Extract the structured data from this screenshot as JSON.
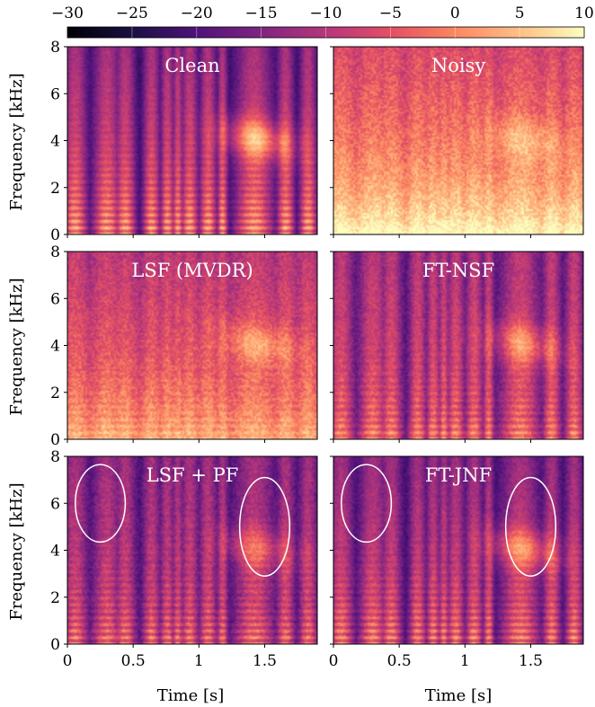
{
  "colorbar": {
    "colormap": "magma",
    "ticks": [
      "−30",
      "−25",
      "−20",
      "−15",
      "−10",
      "−5",
      "0",
      "5",
      "10"
    ],
    "range": [
      -30,
      10
    ]
  },
  "chart_data": {
    "type": "heatmap",
    "xlabel": "Time [s]",
    "ylabel": "Frequency [kHz]",
    "xlim": [
      0,
      1.9
    ],
    "ylim": [
      0,
      8
    ],
    "x_ticks": [
      "0",
      "0.5",
      "1",
      "1.5"
    ],
    "y_ticks": [
      "0",
      "2",
      "4",
      "6",
      "8"
    ],
    "panels": [
      {
        "title": "Clean",
        "row": 0,
        "col": 0,
        "kind": "clean"
      },
      {
        "title": "Noisy",
        "row": 0,
        "col": 1,
        "kind": "noisy"
      },
      {
        "title": "LSF (MVDR)",
        "row": 1,
        "col": 0,
        "kind": "mvdr"
      },
      {
        "title": "FT-NSF",
        "row": 1,
        "col": 1,
        "kind": "nsf"
      },
      {
        "title": "LSF + PF",
        "row": 2,
        "col": 0,
        "kind": "pf"
      },
      {
        "title": "FT-JNF",
        "row": 2,
        "col": 1,
        "kind": "jnf"
      }
    ],
    "ellipses": [
      {
        "panel": 4,
        "cx": 0.25,
        "cy": 6.0,
        "rx": 0.19,
        "ry": 1.65
      },
      {
        "panel": 4,
        "cx": 1.5,
        "cy": 5.0,
        "rx": 0.19,
        "ry": 2.1
      },
      {
        "panel": 5,
        "cx": 0.25,
        "cy": 6.0,
        "rx": 0.19,
        "ry": 1.65
      },
      {
        "panel": 5,
        "cx": 1.5,
        "cy": 5.0,
        "rx": 0.19,
        "ry": 2.1
      }
    ]
  }
}
